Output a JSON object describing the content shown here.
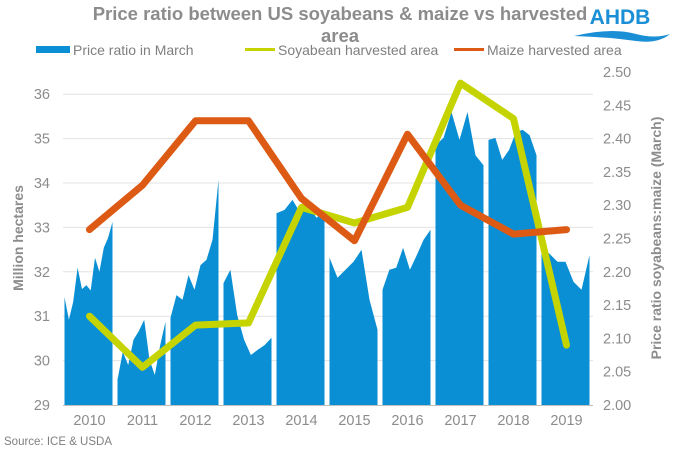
{
  "chart_data": {
    "type": "line",
    "title": "Price ratio between US soyabeans & maize vs harvested area",
    "title_lines": [
      "Price ratio between US soyabeans & maize vs harvested",
      "area"
    ],
    "logo": "AHDB",
    "source": "Source: ICE & USDA",
    "ylabel_left": "Million hectares",
    "ylabel_right": "Price ratio soyabeans:maize (March)",
    "ylim_left": [
      29,
      36.5
    ],
    "ylim_right": [
      2.0,
      2.5
    ],
    "yticks_left": [
      "29",
      "30",
      "31",
      "32",
      "33",
      "34",
      "35",
      "36"
    ],
    "yticks_right": [
      "2.00",
      "2.05",
      "2.10",
      "2.15",
      "2.20",
      "2.25",
      "2.30",
      "2.35",
      "2.40",
      "2.45",
      "2.50"
    ],
    "categories": [
      "2010",
      "2011",
      "2012",
      "2013",
      "2014",
      "2015",
      "2016",
      "2017",
      "2018",
      "2019"
    ],
    "grid": true,
    "legend_position": "top",
    "colors": {
      "price_ratio": "#0a8fd4",
      "soyabean": "#c5d400",
      "maize": "#dd5a14",
      "text": "#8c8c8c",
      "grid": "#e3e3e3",
      "logo": "#1a8fd6"
    },
    "series": [
      {
        "name": "Price ratio in March",
        "type": "area",
        "axis": "right",
        "segments": [
          [
            2.162,
            2.128,
            2.155,
            2.206,
            2.174,
            2.18,
            2.172,
            2.221,
            2.2,
            2.236,
            2.251,
            2.275
          ],
          [
            2.038,
            2.08,
            2.06,
            2.098,
            2.111,
            2.128,
            2.068,
            2.045,
            2.09,
            2.125
          ],
          [
            2.131,
            2.165,
            2.158,
            2.195,
            2.173,
            2.21,
            2.218,
            2.248,
            2.338
          ],
          [
            2.183,
            2.203,
            2.135,
            2.098,
            2.075,
            2.083,
            2.09,
            2.101
          ],
          [
            2.288,
            2.293,
            2.308,
            2.288,
            2.3,
            2.281,
            2.293
          ],
          [
            2.221,
            2.191,
            2.203,
            2.215,
            2.233,
            2.158,
            2.113
          ],
          [
            2.173,
            2.203,
            2.206,
            2.236,
            2.203,
            2.225,
            2.248,
            2.263
          ],
          [
            2.39,
            2.401,
            2.44,
            2.398,
            2.44,
            2.375,
            2.36
          ],
          [
            2.398,
            2.401,
            2.368,
            2.383,
            2.41,
            2.413,
            2.405,
            2.375
          ],
          [
            2.239,
            2.227,
            2.215,
            2.215,
            2.185,
            2.173,
            2.225
          ]
        ]
      },
      {
        "name": "Soyabean harvested area",
        "type": "line",
        "axis": "left",
        "values": [
          31.0,
          29.85,
          30.8,
          30.85,
          33.45,
          33.1,
          33.45,
          36.25,
          35.45,
          30.35
        ]
      },
      {
        "name": "Maize harvested area",
        "type": "line",
        "axis": "left",
        "values": [
          32.95,
          33.95,
          35.4,
          35.4,
          33.65,
          32.7,
          35.1,
          33.5,
          32.85,
          32.95
        ]
      }
    ]
  }
}
